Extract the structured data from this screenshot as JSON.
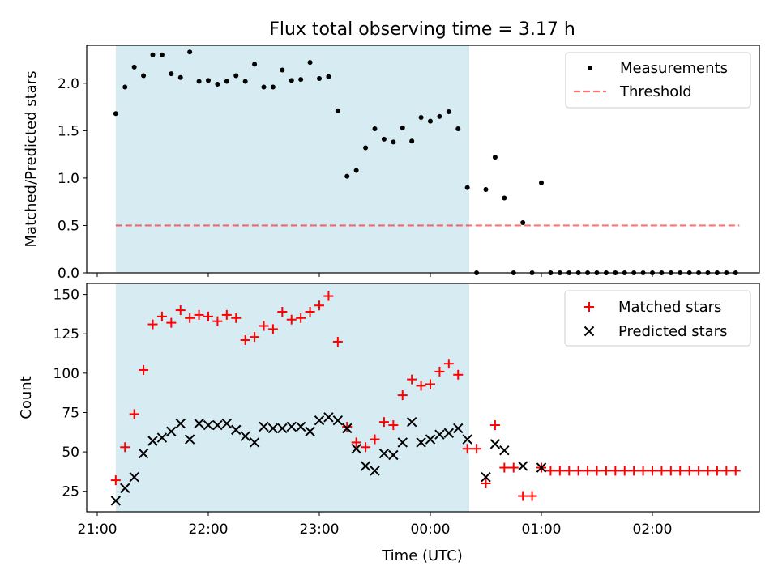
{
  "figure": {
    "title": "Flux total observing time = 3.17 h",
    "xlabel": "Time (UTC)",
    "x_tick_labels": [
      "21:00",
      "22:00",
      "23:00",
      "00:00",
      "01:00",
      "02:00"
    ]
  },
  "colors": {
    "span": "#add8e6",
    "measurement": "#000000",
    "threshold": "#ff0000",
    "matched": "#ff0000",
    "predicted": "#000000",
    "axis": "#000000"
  },
  "chart_data": [
    {
      "type": "scatter",
      "ylabel": "Matched/Predicted stars",
      "xlim": [
        "21:00",
        "03:00"
      ],
      "ylim": [
        0,
        2.4
      ],
      "y_ticks": [
        0.0,
        0.5,
        1.0,
        1.5,
        2.0
      ],
      "y_tick_labels": [
        "0.0",
        "0.5",
        "1.0",
        "1.5",
        "2.0"
      ],
      "highlight_span": [
        "21:10",
        "00:21"
      ],
      "legend": {
        "placement": "upper right",
        "entries": [
          "Measurements",
          "Threshold"
        ]
      },
      "threshold": {
        "name": "Threshold",
        "y": 0.5,
        "x_range": [
          "21:10",
          "02:47"
        ]
      },
      "series": [
        {
          "name": "Measurements",
          "marker": "dot",
          "x": [
            "21:10",
            "21:15",
            "21:20",
            "21:25",
            "21:30",
            "21:35",
            "21:40",
            "21:45",
            "21:50",
            "21:55",
            "22:00",
            "22:05",
            "22:10",
            "22:15",
            "22:20",
            "22:25",
            "22:30",
            "22:35",
            "22:40",
            "22:45",
            "22:50",
            "22:55",
            "23:00",
            "23:05",
            "23:10",
            "23:15",
            "23:20",
            "23:25",
            "23:30",
            "23:35",
            "23:40",
            "23:45",
            "23:50",
            "23:55",
            "00:00",
            "00:05",
            "00:10",
            "00:15",
            "00:20",
            "00:25",
            "00:30",
            "00:35",
            "00:40",
            "00:45",
            "00:50",
            "00:55",
            "01:00",
            "01:05",
            "01:10",
            "01:15",
            "01:20",
            "01:25",
            "01:30",
            "01:35",
            "01:40",
            "01:45",
            "01:50",
            "01:55",
            "02:00",
            "02:05",
            "02:10",
            "02:15",
            "02:20",
            "02:25",
            "02:30",
            "02:35",
            "02:40",
            "02:45"
          ],
          "y": [
            1.68,
            1.96,
            2.17,
            2.08,
            2.3,
            2.3,
            2.1,
            2.06,
            2.33,
            2.02,
            2.03,
            1.99,
            2.02,
            2.08,
            2.02,
            2.2,
            1.96,
            1.96,
            2.14,
            2.03,
            2.04,
            2.22,
            2.05,
            2.07,
            1.71,
            1.02,
            1.08,
            1.32,
            1.52,
            1.41,
            1.38,
            1.53,
            1.39,
            1.64,
            1.6,
            1.65,
            1.7,
            1.52,
            0.9,
            0.0,
            0.88,
            1.22,
            0.79,
            0.0,
            0.53,
            0.0,
            0.95,
            0.0,
            0.0,
            0.0,
            0.0,
            0.0,
            0.0,
            0.0,
            0.0,
            0.0,
            0.0,
            0.0,
            0.0,
            0.0,
            0.0,
            0.0,
            0.0,
            0.0,
            0.0,
            0.0,
            0.0,
            0.0
          ]
        }
      ]
    },
    {
      "type": "scatter",
      "ylabel": "Count",
      "xlim": [
        "21:00",
        "03:00"
      ],
      "ylim": [
        12,
        157
      ],
      "y_ticks": [
        25,
        50,
        75,
        100,
        125,
        150
      ],
      "y_tick_labels": [
        "25",
        "50",
        "75",
        "100",
        "125",
        "150"
      ],
      "highlight_span": [
        "21:10",
        "00:21"
      ],
      "legend": {
        "placement": "upper right",
        "entries": [
          "Matched stars",
          "Predicted stars"
        ]
      },
      "series": [
        {
          "name": "Matched stars",
          "marker": "plus",
          "x": [
            "21:10",
            "21:15",
            "21:20",
            "21:25",
            "21:30",
            "21:35",
            "21:40",
            "21:45",
            "21:50",
            "21:55",
            "22:00",
            "22:05",
            "22:10",
            "22:15",
            "22:20",
            "22:25",
            "22:30",
            "22:35",
            "22:40",
            "22:45",
            "22:50",
            "22:55",
            "23:00",
            "23:05",
            "23:10",
            "23:15",
            "23:20",
            "23:25",
            "23:30",
            "23:35",
            "23:40",
            "23:45",
            "23:50",
            "23:55",
            "00:00",
            "00:05",
            "00:10",
            "00:15",
            "00:20",
            "00:25",
            "00:30",
            "00:35",
            "00:40",
            "00:45",
            "00:50",
            "00:55",
            "01:00",
            "01:05",
            "01:10",
            "01:15",
            "01:20",
            "01:25",
            "01:30",
            "01:35",
            "01:40",
            "01:45",
            "01:50",
            "01:55",
            "02:00",
            "02:05",
            "02:10",
            "02:15",
            "02:20",
            "02:25",
            "02:30",
            "02:35",
            "02:40",
            "02:45"
          ],
          "y": [
            32,
            53,
            74,
            102,
            131,
            136,
            132,
            140,
            135,
            137,
            136,
            133,
            137,
            135,
            121,
            123,
            130,
            128,
            139,
            134,
            135,
            139,
            143,
            149,
            120,
            66,
            56,
            53,
            58,
            69,
            67,
            86,
            96,
            92,
            93,
            101,
            106,
            99,
            52,
            52,
            30,
            67,
            40,
            40,
            22,
            22,
            40,
            38,
            38,
            38,
            38,
            38,
            38,
            38,
            38,
            38,
            38,
            38,
            38,
            38,
            38,
            38,
            38,
            38,
            38,
            38,
            38,
            38
          ]
        },
        {
          "name": "Predicted stars",
          "marker": "x",
          "x": [
            "21:10",
            "21:15",
            "21:20",
            "21:25",
            "21:30",
            "21:35",
            "21:40",
            "21:45",
            "21:50",
            "21:55",
            "22:00",
            "22:05",
            "22:10",
            "22:15",
            "22:20",
            "22:25",
            "22:30",
            "22:35",
            "22:40",
            "22:45",
            "22:50",
            "22:55",
            "23:00",
            "23:05",
            "23:10",
            "23:15",
            "23:20",
            "23:25",
            "23:30",
            "23:35",
            "23:40",
            "23:45",
            "23:50",
            "23:55",
            "00:00",
            "00:05",
            "00:10",
            "00:15",
            "00:20",
            "00:30",
            "00:35",
            "00:40",
            "00:50",
            "01:00"
          ],
          "y": [
            19,
            27,
            34,
            49,
            57,
            59,
            63,
            68,
            58,
            68,
            67,
            67,
            68,
            64,
            60,
            56,
            66,
            65,
            65,
            66,
            66,
            63,
            70,
            72,
            70,
            65,
            52,
            41,
            38,
            49,
            48,
            56,
            69,
            56,
            58,
            61,
            62,
            65,
            58,
            34,
            55,
            51,
            41,
            40
          ]
        }
      ]
    }
  ]
}
